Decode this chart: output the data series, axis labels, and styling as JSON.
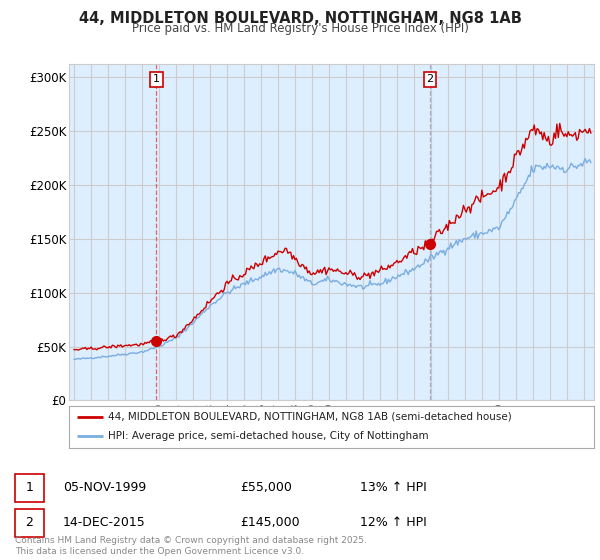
{
  "title": "44, MIDDLETON BOULEVARD, NOTTINGHAM, NG8 1AB",
  "subtitle": "Price paid vs. HM Land Registry's House Price Index (HPI)",
  "ylabel_ticks": [
    "£0",
    "£50K",
    "£100K",
    "£150K",
    "£200K",
    "£250K",
    "£300K"
  ],
  "ylim": [
    0,
    312000
  ],
  "xlim_start": 1994.7,
  "xlim_end": 2025.6,
  "purchase1_x": 1999.846,
  "purchase1_y": 55000,
  "purchase2_x": 2015.956,
  "purchase2_y": 145000,
  "red_line_color": "#cc0000",
  "blue_line_color": "#7aade0",
  "vline1_color": "#dd4444",
  "vline2_color": "#9999bb",
  "grid_color": "#cccccc",
  "plot_bg_color": "#ddeeff",
  "legend1": "44, MIDDLETON BOULEVARD, NOTTINGHAM, NG8 1AB (semi-detached house)",
  "legend2": "HPI: Average price, semi-detached house, City of Nottingham",
  "annotation1_date": "05-NOV-1999",
  "annotation1_price": "£55,000",
  "annotation1_hpi": "13% ↑ HPI",
  "annotation2_date": "14-DEC-2015",
  "annotation2_price": "£145,000",
  "annotation2_hpi": "12% ↑ HPI",
  "footer": "Contains HM Land Registry data © Crown copyright and database right 2025.\nThis data is licensed under the Open Government Licence v3.0.",
  "background_color": "#ffffff"
}
